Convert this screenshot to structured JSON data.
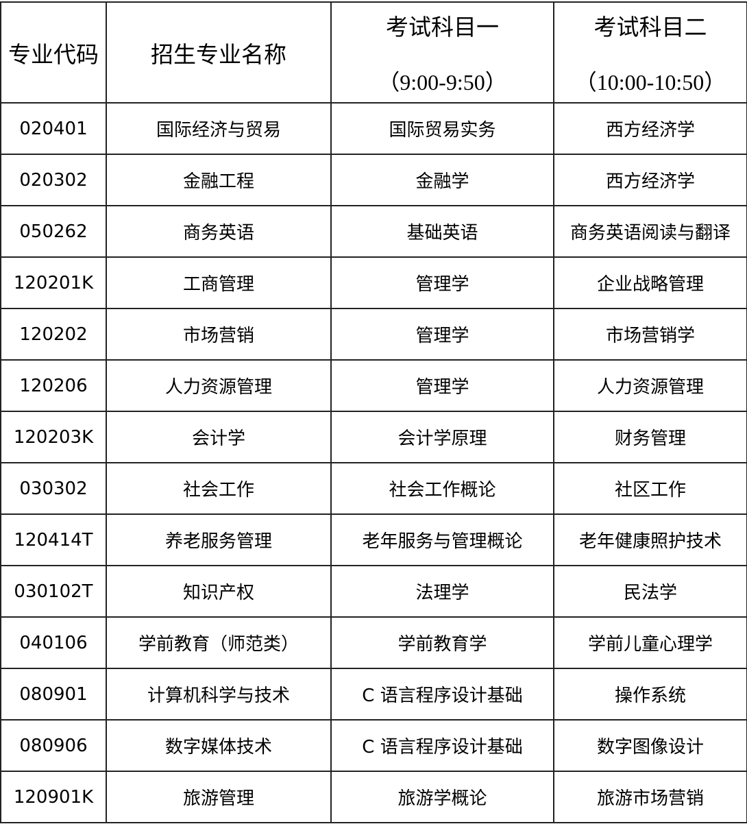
{
  "header": {
    "code": "专业代码",
    "major": "招生专业名称",
    "subject1": "考试科目一",
    "subject1_time": "（9:00-9:50）",
    "subject2": "考试科目二",
    "subject2_time": "（10:00-10:50）"
  },
  "rows": [
    {
      "code": "020401",
      "major": "国际经济与贸易",
      "s1": "国际贸易实务",
      "s2": "西方经济学"
    },
    {
      "code": "020302",
      "major": "金融工程",
      "s1": "金融学",
      "s2": "西方经济学"
    },
    {
      "code": "050262",
      "major": "商务英语",
      "s1": "基础英语",
      "s2": "商务英语阅读与翻译"
    },
    {
      "code": "120201K",
      "major": "工商管理",
      "s1": "管理学",
      "s2": "企业战略管理"
    },
    {
      "code": "120202",
      "major": "市场营销",
      "s1": "管理学",
      "s2": "市场营销学"
    },
    {
      "code": "120206",
      "major": "人力资源管理",
      "s1": "管理学",
      "s2": "人力资源管理"
    },
    {
      "code": "120203K",
      "major": "会计学",
      "s1": "会计学原理",
      "s2": "财务管理"
    },
    {
      "code": "030302",
      "major": "社会工作",
      "s1": "社会工作概论",
      "s2": "社区工作"
    },
    {
      "code": "120414T",
      "major": "养老服务管理",
      "s1": "老年服务与管理概论",
      "s2": "老年健康照护技术"
    },
    {
      "code": "030102T",
      "major": "知识产权",
      "s1": "法理学",
      "s2": "民法学"
    },
    {
      "code": "040106",
      "major": "学前教育（师范类）",
      "s1": "学前教育学",
      "s2": "学前儿童心理学"
    },
    {
      "code": "080901",
      "major": "计算机科学与技术",
      "s1": "C 语言程序设计基础",
      "s2": "操作系统"
    },
    {
      "code": "080906",
      "major": "数字媒体技术",
      "s1": "C 语言程序设计基础",
      "s2": "数字图像设计"
    },
    {
      "code": "120901K",
      "major": "旅游管理",
      "s1": "旅游学概论",
      "s2": "旅游市场营销"
    }
  ]
}
